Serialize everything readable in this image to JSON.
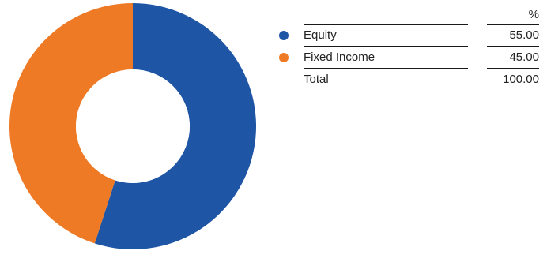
{
  "chart_data": {
    "type": "pie",
    "variant": "donut",
    "categories": [
      "Equity",
      "Fixed Income"
    ],
    "values": [
      55.0,
      45.0
    ],
    "colors": [
      "#1f55a5",
      "#ef7a25"
    ],
    "value_header": "%",
    "total_label": "Total",
    "total_value": "100.00",
    "legend_placement": "right"
  },
  "legend": {
    "header": "%",
    "rows": [
      {
        "label": "Equity",
        "value": "55.00",
        "color": "#1f55a5"
      },
      {
        "label": "Fixed Income",
        "value": "45.00",
        "color": "#ef7a25"
      }
    ],
    "total": {
      "label": "Total",
      "value": "100.00"
    }
  }
}
